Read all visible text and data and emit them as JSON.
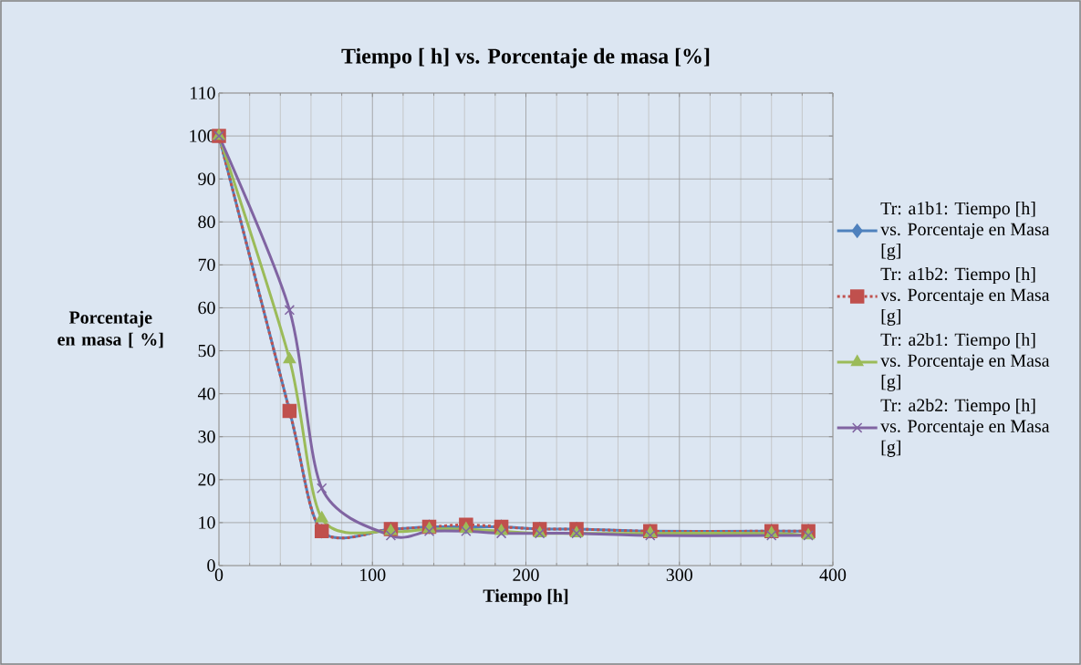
{
  "chart_data": {
    "type": "line",
    "title": "Tiempo [ h] vs. Porcentaje de masa [%]",
    "xlabel": "Tiempo [h]",
    "ylabel": "Porcentaje en masa [ %]",
    "x": [
      0,
      46,
      67,
      112,
      137,
      161,
      184,
      209,
      233,
      281,
      360,
      384
    ],
    "xlim": [
      0,
      400
    ],
    "xticks": [
      0,
      100,
      200,
      300,
      400
    ],
    "ylim": [
      0,
      110
    ],
    "yticks": [
      0,
      10,
      20,
      30,
      40,
      50,
      60,
      70,
      80,
      90,
      100,
      110
    ],
    "grid": true,
    "legend": "right",
    "series": [
      {
        "name": "Tr: a1b1: Tiempo [h] vs. Porcentaje en Masa [g]",
        "color": "#4f81bd",
        "marker": "diamond",
        "line_style": "solid",
        "values": [
          100,
          36,
          8,
          8.5,
          9,
          9,
          9,
          8.5,
          8.5,
          8,
          8,
          8
        ]
      },
      {
        "name": "Tr: a1b2: Tiempo [h] vs. Porcentaje en Masa [g]",
        "color": "#c0504d",
        "marker": "square",
        "line_style": "dashed",
        "values": [
          100,
          36,
          8,
          8.5,
          9,
          9.5,
          9,
          8.5,
          8.5,
          8,
          8,
          8
        ]
      },
      {
        "name": "Tr: a2b1: Tiempo [h] vs. Porcentaje en Masa [g]",
        "color": "#9bbb59",
        "marker": "triangle",
        "line_style": "solid",
        "values": [
          100,
          48,
          11,
          8,
          8.5,
          8.5,
          8,
          7.5,
          7.5,
          7.5,
          7.5,
          7
        ]
      },
      {
        "name": "Tr: a2b2: Tiempo [h] vs. Porcentaje en Masa [g]",
        "color": "#8064a2",
        "marker": "cross",
        "line_style": "solid",
        "values": [
          100,
          59.5,
          18,
          7,
          8,
          8,
          7.5,
          7.5,
          7.5,
          7,
          7,
          7
        ]
      }
    ]
  }
}
